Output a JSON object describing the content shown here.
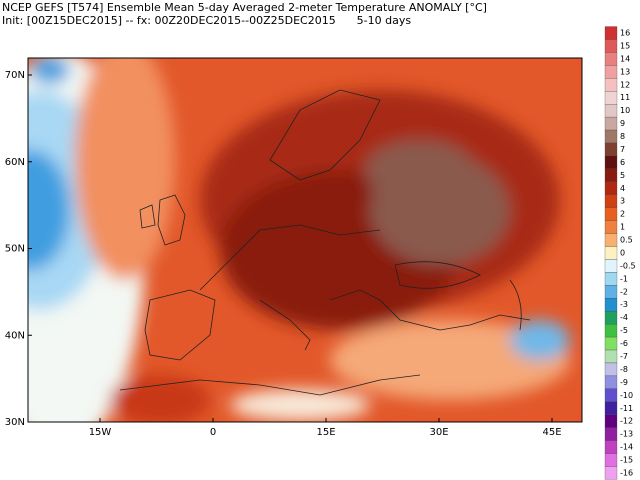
{
  "header": {
    "line1": "NCEP GEFS [T574] Ensemble Mean 5-day Averaged 2-meter Temperature ANOMALY [°C]",
    "line2": "Init: [00Z15DEC2015] -- fx: 00Z20DEC2015--00Z25DEC2015      5-10 days"
  },
  "map": {
    "lat_labels": [
      "70N",
      "60N",
      "50N",
      "40N",
      "30N"
    ],
    "lon_labels": [
      "15W",
      "0",
      "15E",
      "30E",
      "45E"
    ]
  },
  "colorbar": {
    "labels": [
      "16",
      "15",
      "14",
      "13",
      "12",
      "11",
      "10",
      "9",
      "8",
      "7",
      "6",
      "5",
      "4",
      "3",
      "2",
      "1",
      "0.5",
      "0",
      "-0.5",
      "-1",
      "-2",
      "-3",
      "-4",
      "-5",
      "-6",
      "-7",
      "-8",
      "-9",
      "-10",
      "-11",
      "-12",
      "-13",
      "-14",
      "-15",
      "-16"
    ],
    "colors": [
      "#d03030",
      "#e05858",
      "#e88080",
      "#f0a0a0",
      "#f5c0c0",
      "#f0d4d4",
      "#e0c8c8",
      "#c8a8a0",
      "#a07868",
      "#804030",
      "#601010",
      "#8b1a10",
      "#b02810",
      "#d04010",
      "#e86020",
      "#f08040",
      "#f8b070",
      "#fff0c0",
      "#e0f4ff",
      "#a0d8f0",
      "#60b0e8",
      "#2090d0",
      "#20a060",
      "#40c040",
      "#80e060",
      "#b0e0b0",
      "#c0c0e8",
      "#9090e0",
      "#6050d0",
      "#4020a0",
      "#600080",
      "#9020a0",
      "#c040c0",
      "#e070e0",
      "#f0a0f0"
    ]
  }
}
